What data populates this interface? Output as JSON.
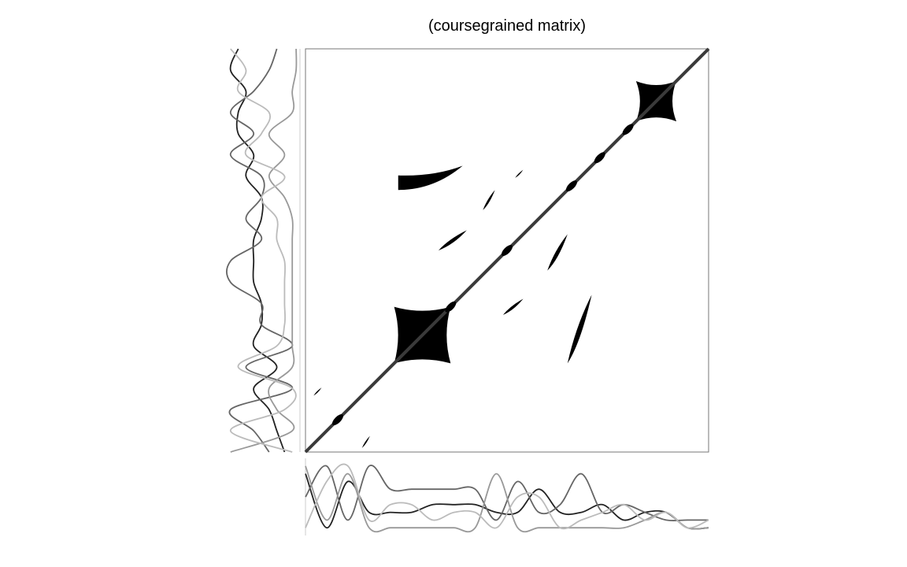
{
  "chart_data": [
    {
      "type": "heatmap",
      "title": "(coursegrained matrix)",
      "xlabel": "",
      "ylabel": "",
      "colors": {
        "fill": "#000000",
        "diagonal": "#3a3a3a",
        "frame": "#777777"
      },
      "diagonal": {
        "from": [
          0,
          0
        ],
        "to": [
          1,
          1
        ]
      },
      "diagonal_nodes": [
        0.08,
        0.36,
        0.5,
        0.66,
        0.73,
        0.8
      ],
      "blocks": [
        {
          "x": [
            0.22,
            0.36
          ],
          "y": [
            0.22,
            0.36
          ]
        },
        {
          "x": [
            0.82,
            0.92
          ],
          "y": [
            0.82,
            0.92
          ]
        }
      ],
      "streaks": [
        {
          "x": [
            0.23,
            0.39
          ],
          "y": [
            0.65,
            0.71
          ],
          "dir": "neg"
        },
        {
          "x": [
            0.52,
            0.54
          ],
          "y": [
            0.68,
            0.7
          ],
          "dir": "pos"
        },
        {
          "x": [
            0.44,
            0.47
          ],
          "y": [
            0.6,
            0.65
          ],
          "dir": "pos"
        },
        {
          "x": [
            0.33,
            0.4
          ],
          "y": [
            0.5,
            0.55
          ],
          "dir": "pos"
        },
        {
          "x": [
            0.6,
            0.65
          ],
          "y": [
            0.45,
            0.54
          ],
          "dir": "pos"
        },
        {
          "x": [
            0.49,
            0.54
          ],
          "y": [
            0.34,
            0.38
          ],
          "dir": "pos"
        },
        {
          "x": [
            0.65,
            0.71
          ],
          "y": [
            0.22,
            0.39
          ],
          "dir": "pos"
        },
        {
          "x": [
            0.02,
            0.04
          ],
          "y": [
            0.14,
            0.16
          ],
          "dir": "pos"
        },
        {
          "x": [
            0.14,
            0.16
          ],
          "y": [
            0.01,
            0.04
          ],
          "dir": "pos"
        }
      ],
      "side_profiles": {
        "left": [
          {
            "name": "",
            "color": "#222222",
            "values": [
              0.2,
              0.3,
              0.4,
              0.6,
              0.3,
              0.6,
              0.5,
              0.5,
              0.6,
              0.6,
              0.6,
              0.5,
              0.5,
              0.7,
              0.6,
              0.8,
              0.8,
              0.7,
              0.9,
              0.8
            ]
          },
          {
            "name": "",
            "color": "#666666",
            "values": [
              0.4,
              0.6,
              0.9,
              0.1,
              0.7,
              0.1,
              0.5,
              0.5,
              0.9,
              0.9,
              0.5,
              0.7,
              0.5,
              0.5,
              0.9,
              0.6,
              0.9,
              0.6,
              0.4,
              0.3
            ]
          },
          {
            "name": "",
            "color": "#999999",
            "values": [
              0.9,
              0.1,
              0.3,
              0.4,
              0.1,
              0.1,
              0.1,
              0.1,
              0.1,
              0.1,
              0.1,
              0.1,
              0.2,
              0.4,
              0.2,
              0.4,
              0.1,
              0.1,
              0.05,
              0.05
            ]
          },
          {
            "name": "",
            "color": "#bbbbbb",
            "values": [
              0.1,
              0.9,
              0.2,
              0.1,
              0.8,
              0.3,
              0.2,
              0.2,
              0.2,
              0.2,
              0.3,
              0.3,
              0.5,
              0.2,
              0.7,
              0.5,
              0.4,
              0.8,
              0.7,
              0.9
            ]
          }
        ],
        "bottom": [
          {
            "name": "",
            "color": "#222222",
            "values": [
              0.8,
              0.1,
              0.7,
              0.3,
              0.3,
              0.3,
              0.4,
              0.4,
              0.4,
              0.3,
              0.3,
              0.6,
              0.3,
              0.3,
              0.4,
              0.2,
              0.3,
              0.3,
              0.1,
              0.1
            ]
          },
          {
            "name": "",
            "color": "#666666",
            "values": [
              0.5,
              0.9,
              0.2,
              0.9,
              0.6,
              0.6,
              0.6,
              0.6,
              0.6,
              0.2,
              0.7,
              0.3,
              0.4,
              0.8,
              0.3,
              0.4,
              0.3,
              0.2,
              0.2,
              0.2
            ]
          },
          {
            "name": "",
            "color": "#999999",
            "values": [
              0.9,
              0.2,
              0.8,
              0.1,
              0.1,
              0.1,
              0.1,
              0.1,
              0.1,
              0.8,
              0.1,
              0.1,
              0.1,
              0.1,
              0.1,
              0.1,
              0.2,
              0.3,
              0.1,
              0.1
            ]
          },
          {
            "name": "",
            "color": "#bbbbbb",
            "values": [
              0.1,
              0.7,
              0.9,
              0.2,
              0.4,
              0.4,
              0.2,
              0.3,
              0.3,
              0.1,
              0.5,
              0.5,
              0.1,
              0.2,
              0.3,
              0.4,
              0.2,
              0.3,
              0.1,
              0.2
            ]
          }
        ]
      }
    }
  ]
}
